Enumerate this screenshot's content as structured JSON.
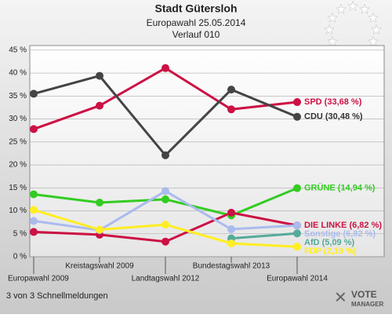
{
  "chart_data": {
    "type": "line",
    "title": "Stadt Gütersloh",
    "subtitle": "Europawahl 25.05.2014",
    "subtitle2": "Verlauf 010",
    "footer": "3 von 3 Schnellmeldungen",
    "logo": [
      "VOTE",
      "MANAGER"
    ],
    "categories": [
      "Europawahl 2009",
      "Kreistagswahl 2009",
      "Landtagswahl 2012",
      "Bundestagswahl 2013",
      "Europawahl 2014"
    ],
    "ylim": [
      0,
      46
    ],
    "yticks": [
      {
        "value": 0,
        "label": "0 %"
      },
      {
        "value": 5,
        "label": "5 %"
      },
      {
        "value": 10,
        "label": "10 %"
      },
      {
        "value": 15,
        "label": "15 %"
      },
      {
        "value": 20,
        "label": "20 %"
      },
      {
        "value": 25,
        "label": "25 %"
      },
      {
        "value": 30,
        "label": "30 %"
      },
      {
        "value": 35,
        "label": "35 %"
      },
      {
        "value": 40,
        "label": "40 %"
      },
      {
        "value": 45,
        "label": "45 %"
      }
    ],
    "grid": true,
    "series": [
      {
        "name": "SPD",
        "color": "#cc1144",
        "values": [
          27.8,
          32.9,
          41.1,
          32.1,
          33.68
        ],
        "end_label": "SPD (33,68 %)"
      },
      {
        "name": "CDU",
        "color": "#444444",
        "values": [
          35.5,
          39.4,
          22.1,
          36.4,
          30.48
        ],
        "end_label": "CDU (30,48 %)"
      },
      {
        "name": "GRÜNE",
        "color": "#33cc22",
        "values": [
          13.6,
          11.8,
          12.5,
          9.0,
          14.94
        ],
        "end_label": "GRÜNE (14,94 %)"
      },
      {
        "name": "DIE LINKE",
        "color": "#cc1144",
        "values": [
          5.4,
          4.8,
          3.3,
          9.6,
          6.82
        ],
        "end_label": "DIE LINKE (6,82 %)"
      },
      {
        "name": "Sonstige",
        "color": "#aabbee",
        "values": [
          7.8,
          5.8,
          14.3,
          6.0,
          6.82
        ],
        "end_label": "Sonstige (6,82 %)"
      },
      {
        "name": "AfD",
        "color": "#55aa99",
        "values": [
          null,
          null,
          null,
          4.0,
          5.09
        ],
        "end_label": "AfD (5,09 %)"
      },
      {
        "name": "FDP",
        "color": "#ffee22",
        "values": [
          10.2,
          5.9,
          7.0,
          2.9,
          2.19
        ],
        "end_label": "FDP (2,19 %)"
      }
    ]
  }
}
